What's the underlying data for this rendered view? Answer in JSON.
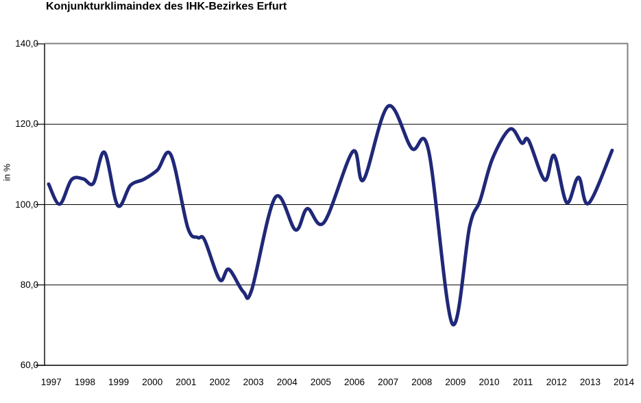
{
  "chart_data": {
    "type": "line",
    "title": "Konjunkturklimaindex des IHK-Bezirkes Erfurt",
    "xlabel": "",
    "ylabel": "in %",
    "ylim": [
      60,
      140
    ],
    "xlim": [
      1996.8,
      2014.1
    ],
    "grid": "horizontal-only",
    "legend_position": "none",
    "line_color": "#202878",
    "gridline_color": "#000000",
    "plot_border_color": "#808080",
    "axis_color": "#000000",
    "y_ticks": [
      {
        "label": "140,0",
        "value": 140
      },
      {
        "label": "120,0",
        "value": 120
      },
      {
        "label": "100,0",
        "value": 100
      },
      {
        "label": "80,0",
        "value": 80
      },
      {
        "label": "60,0",
        "value": 60
      }
    ],
    "x_ticks": [
      {
        "label": "1997",
        "value": 1997
      },
      {
        "label": "1998",
        "value": 1998
      },
      {
        "label": "1999",
        "value": 1999
      },
      {
        "label": "2000",
        "value": 2000
      },
      {
        "label": "2001",
        "value": 2001
      },
      {
        "label": "2002",
        "value": 2002
      },
      {
        "label": "2003",
        "value": 2003
      },
      {
        "label": "2004",
        "value": 2004
      },
      {
        "label": "2005",
        "value": 2005
      },
      {
        "label": "2006",
        "value": 2006
      },
      {
        "label": "2007",
        "value": 2007
      },
      {
        "label": "2008",
        "value": 2008
      },
      {
        "label": "2009",
        "value": 2009
      },
      {
        "label": "2010",
        "value": 2010
      },
      {
        "label": "2011",
        "value": 2011
      },
      {
        "label": "2012",
        "value": 2012
      },
      {
        "label": "2013",
        "value": 2013
      },
      {
        "label": "2014",
        "value": 2014
      }
    ],
    "series": [
      {
        "points": [
          [
            1996.92,
            105.1
          ],
          [
            1997.25,
            100.1
          ],
          [
            1997.6,
            106.2
          ],
          [
            1997.95,
            106.4
          ],
          [
            1998.25,
            105.3
          ],
          [
            1998.58,
            113.0
          ],
          [
            1998.97,
            99.8
          ],
          [
            1999.35,
            104.8
          ],
          [
            1999.75,
            106.3
          ],
          [
            2000.15,
            108.6
          ],
          [
            2000.55,
            112.4
          ],
          [
            2001.05,
            94.3
          ],
          [
            2001.35,
            91.8
          ],
          [
            2001.55,
            91.2
          ],
          [
            2002.0,
            81.3
          ],
          [
            2002.27,
            83.9
          ],
          [
            2002.7,
            78.3
          ],
          [
            2002.95,
            78.8
          ],
          [
            2003.65,
            101.8
          ],
          [
            2004.25,
            93.7
          ],
          [
            2004.6,
            99.0
          ],
          [
            2005.1,
            95.6
          ],
          [
            2005.95,
            113.2
          ],
          [
            2006.27,
            106.2
          ],
          [
            2007.0,
            124.5
          ],
          [
            2007.7,
            114.0
          ],
          [
            2008.2,
            113.5
          ],
          [
            2008.9,
            70.4
          ],
          [
            2009.42,
            94.6
          ],
          [
            2009.73,
            101.0
          ],
          [
            2010.1,
            111.5
          ],
          [
            2010.62,
            118.8
          ],
          [
            2010.97,
            115.3
          ],
          [
            2011.17,
            116.0
          ],
          [
            2011.65,
            106.1
          ],
          [
            2011.93,
            112.2
          ],
          [
            2012.3,
            100.5
          ],
          [
            2012.65,
            106.8
          ],
          [
            2012.95,
            100.3
          ],
          [
            2013.65,
            113.5
          ]
        ]
      }
    ]
  }
}
